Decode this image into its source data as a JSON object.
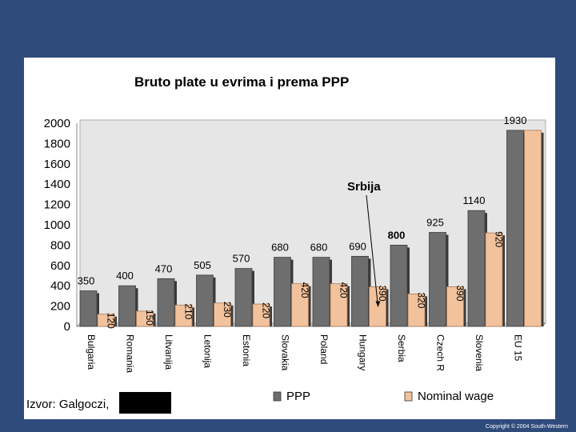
{
  "chart_data": {
    "type": "bar",
    "title": "Bruto plate u evrima i prema PPP",
    "categories": [
      "Bulgaria",
      "Romania",
      "Litvanija",
      "Letonija",
      "Estonia",
      "Slovakia",
      "Poland",
      "Hungary",
      "Serbia",
      "Czech R",
      "Slovenia",
      "EU 15"
    ],
    "series": [
      {
        "name": "PPP",
        "color": "#6e6e6e",
        "values": [
          350,
          400,
          470,
          505,
          570,
          680,
          680,
          690,
          800,
          925,
          1140,
          1930
        ],
        "labels": [
          "350",
          "400",
          "470",
          "505",
          "570",
          "680",
          "680",
          "690",
          "800",
          "925",
          "1140",
          "1930"
        ]
      },
      {
        "name": "Nominal wage",
        "color": "#f2c29d",
        "values": [
          120,
          150,
          210,
          230,
          220,
          420,
          420,
          390,
          320,
          390,
          920,
          1930
        ],
        "labels": [
          "120",
          "150",
          "210",
          "230",
          "220",
          "420",
          "420",
          "390",
          "320",
          "390",
          "920",
          ""
        ]
      }
    ],
    "ylim": [
      0,
      2000
    ],
    "yticks": [
      "0",
      "200",
      "400",
      "600",
      "800",
      "1000",
      "1200",
      "1400",
      "1600",
      "1800",
      "2000"
    ],
    "grid": false,
    "legend_position": "bottom",
    "annotation": {
      "text": "Srbija",
      "target_category": "Hungary"
    }
  },
  "source_text": "Izvor: Galgoczi,",
  "copyright": "Copyright © 2004 South-Western"
}
